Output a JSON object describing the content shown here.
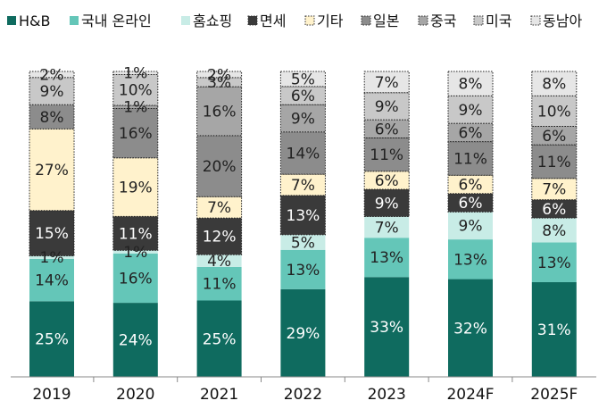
{
  "chart_data": {
    "type": "bar",
    "stacked": true,
    "legend_position": "top",
    "grid": false,
    "ylim": [
      0,
      100
    ],
    "categories": [
      "2019",
      "2020",
      "2021",
      "2022",
      "2023",
      "2024F",
      "2025F"
    ],
    "series": [
      {
        "name": "H&B",
        "color": "#0f6b5f",
        "pattern": "solid",
        "values": [
          25,
          24,
          25,
          29,
          33,
          32,
          31
        ]
      },
      {
        "name": "국내 온라인",
        "color": "#64c6b8",
        "pattern": "solid",
        "values": [
          14,
          16,
          11,
          13,
          13,
          13,
          13
        ]
      },
      {
        "name": "홈쇼핑",
        "color": "#c8ece6",
        "pattern": "solid",
        "values": [
          1,
          1,
          4,
          5,
          7,
          9,
          8
        ]
      },
      {
        "name": "면세",
        "color": "#3a3a3a",
        "pattern": "dotted",
        "values": [
          15,
          11,
          12,
          13,
          9,
          6,
          6
        ]
      },
      {
        "name": "기타",
        "color": "#fff2cc",
        "pattern": "dotted",
        "values": [
          27,
          19,
          7,
          7,
          6,
          6,
          7
        ]
      },
      {
        "name": "일본",
        "color": "#8c8c8c",
        "pattern": "dotted",
        "values": [
          8,
          16,
          20,
          14,
          11,
          11,
          11
        ]
      },
      {
        "name": "중국",
        "color": "#a6a6a6",
        "pattern": "dotted",
        "values": [
          0,
          1,
          16,
          9,
          6,
          6,
          6
        ]
      },
      {
        "name": "미국",
        "color": "#c8c8c8",
        "pattern": "dotted",
        "values": [
          9,
          10,
          3,
          6,
          9,
          9,
          10
        ]
      },
      {
        "name": "동남아",
        "color": "#e6e6e6",
        "pattern": "dotted",
        "values": [
          2,
          1,
          2,
          5,
          7,
          8,
          8
        ]
      }
    ],
    "value_suffix": "%"
  }
}
